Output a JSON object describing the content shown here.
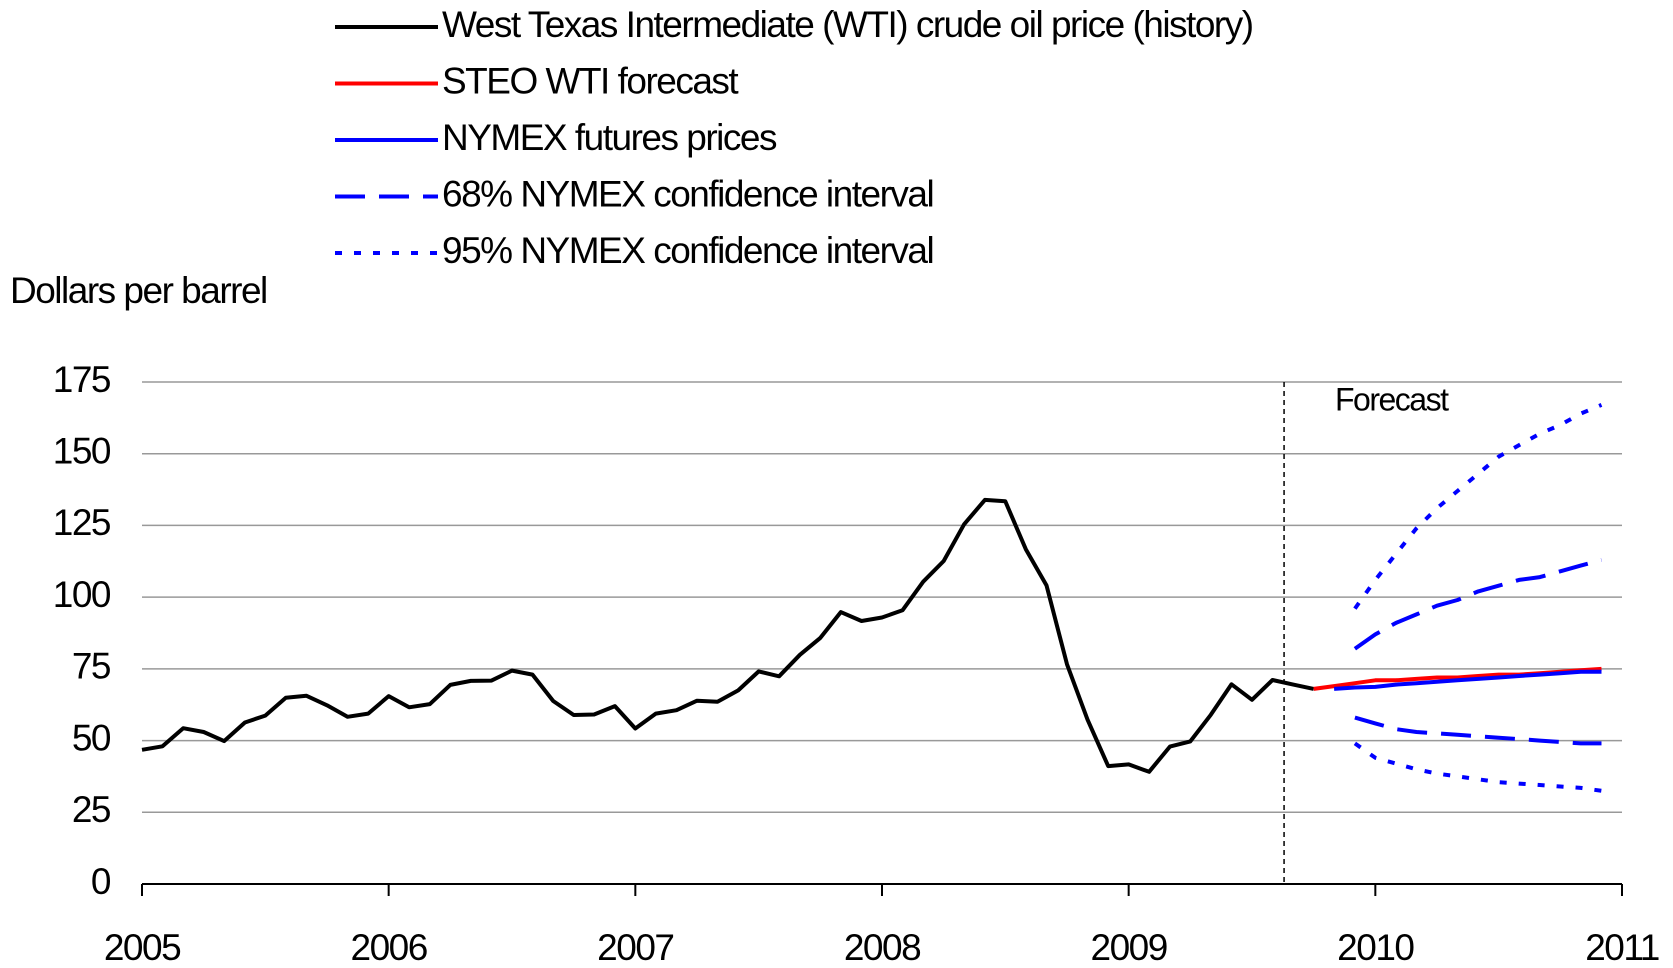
{
  "chart_data": {
    "type": "line",
    "y_label": "Dollars per barrel",
    "annotation": "Forecast",
    "forecast_start": 2009.63,
    "xlim": [
      2005,
      2011
    ],
    "xticks": [
      2005,
      2006,
      2007,
      2008,
      2009,
      2010,
      2011
    ],
    "ylim": [
      0,
      175
    ],
    "yticks": [
      0,
      25,
      50,
      75,
      100,
      125,
      150,
      175
    ],
    "grid": true,
    "x": [
      2005,
      2005.083,
      2005.167,
      2005.25,
      2005.333,
      2005.417,
      2005.5,
      2005.583,
      2005.667,
      2005.75,
      2005.833,
      2005.917,
      2006,
      2006.083,
      2006.167,
      2006.25,
      2006.333,
      2006.417,
      2006.5,
      2006.583,
      2006.667,
      2006.75,
      2006.833,
      2006.917,
      2007,
      2007.083,
      2007.167,
      2007.25,
      2007.333,
      2007.417,
      2007.5,
      2007.583,
      2007.667,
      2007.75,
      2007.833,
      2007.917,
      2008,
      2008.083,
      2008.167,
      2008.25,
      2008.333,
      2008.417,
      2008.5,
      2008.583,
      2008.667,
      2008.75,
      2008.833,
      2008.917,
      2009,
      2009.083,
      2009.167,
      2009.25,
      2009.333,
      2009.417,
      2009.5,
      2009.583,
      2009.667,
      2009.75,
      2009.833,
      2009.917,
      2010,
      2010.083,
      2010.167,
      2010.25,
      2010.333,
      2010.417,
      2010.5,
      2010.583,
      2010.667,
      2010.75,
      2010.833,
      2010.917
    ],
    "series": [
      {
        "name": "West Texas Intermediate (WTI) crude oil price (history)",
        "color": "#000000",
        "dash": "solid",
        "values": [
          46.8,
          48.0,
          54.3,
          53.0,
          49.8,
          56.3,
          58.7,
          64.9,
          65.6,
          62.3,
          58.3,
          59.4,
          65.5,
          61.6,
          62.7,
          69.4,
          70.8,
          70.9,
          74.4,
          73.0,
          63.8,
          58.9,
          59.1,
          62.0,
          54.2,
          59.4,
          60.6,
          63.9,
          63.5,
          67.5,
          74.1,
          72.4,
          79.9,
          85.8,
          94.8,
          91.7,
          92.9,
          95.4,
          105.4,
          112.6,
          125.4,
          133.9,
          133.4,
          116.7,
          104.1,
          76.6,
          57.3,
          41.1,
          41.7,
          39.1,
          47.9,
          49.7,
          59.0,
          69.6,
          64.2,
          71.1,
          69.5,
          68.0,
          null,
          null,
          null,
          null,
          null,
          null,
          null,
          null,
          null,
          null,
          null,
          null,
          null,
          null
        ]
      },
      {
        "name": "STEO WTI forecast",
        "color": "#ff0000",
        "dash": "solid",
        "values": [
          null,
          null,
          null,
          null,
          null,
          null,
          null,
          null,
          null,
          null,
          null,
          null,
          null,
          null,
          null,
          null,
          null,
          null,
          null,
          null,
          null,
          null,
          null,
          null,
          null,
          null,
          null,
          null,
          null,
          null,
          null,
          null,
          null,
          null,
          null,
          null,
          null,
          null,
          null,
          null,
          null,
          null,
          null,
          null,
          null,
          null,
          null,
          null,
          null,
          null,
          null,
          null,
          null,
          null,
          null,
          null,
          null,
          68,
          69,
          70,
          71,
          71,
          71.5,
          72,
          72,
          72.5,
          73,
          73,
          73.5,
          74,
          74.5,
          75
        ]
      },
      {
        "name": "NYMEX futures prices",
        "color": "#0000ff",
        "dash": "solid",
        "values": [
          null,
          null,
          null,
          null,
          null,
          null,
          null,
          null,
          null,
          null,
          null,
          null,
          null,
          null,
          null,
          null,
          null,
          null,
          null,
          null,
          null,
          null,
          null,
          null,
          null,
          null,
          null,
          null,
          null,
          null,
          null,
          null,
          null,
          null,
          null,
          null,
          null,
          null,
          null,
          null,
          null,
          null,
          null,
          null,
          null,
          null,
          null,
          null,
          null,
          null,
          null,
          null,
          null,
          null,
          null,
          null,
          null,
          null,
          68,
          68.5,
          68.7,
          69.5,
          70,
          70.5,
          71,
          71.5,
          72,
          72.5,
          73,
          73.5,
          74,
          74
        ]
      },
      {
        "name": "68% NYMEX confidence interval",
        "color": "#0000ff",
        "dash": "dashed",
        "upper": [
          null,
          null,
          null,
          null,
          null,
          null,
          null,
          null,
          null,
          null,
          null,
          null,
          null,
          null,
          null,
          null,
          null,
          null,
          null,
          null,
          null,
          null,
          null,
          null,
          null,
          null,
          null,
          null,
          null,
          null,
          null,
          null,
          null,
          null,
          null,
          null,
          null,
          null,
          null,
          null,
          null,
          null,
          null,
          null,
          null,
          null,
          null,
          null,
          null,
          null,
          null,
          null,
          null,
          null,
          null,
          null,
          null,
          null,
          null,
          82,
          87,
          91,
          94,
          97,
          99,
          102,
          104,
          106,
          107,
          109,
          111,
          113
        ],
        "lower": [
          null,
          null,
          null,
          null,
          null,
          null,
          null,
          null,
          null,
          null,
          null,
          null,
          null,
          null,
          null,
          null,
          null,
          null,
          null,
          null,
          null,
          null,
          null,
          null,
          null,
          null,
          null,
          null,
          null,
          null,
          null,
          null,
          null,
          null,
          null,
          null,
          null,
          null,
          null,
          null,
          null,
          null,
          null,
          null,
          null,
          null,
          null,
          null,
          null,
          null,
          null,
          null,
          null,
          null,
          null,
          null,
          null,
          null,
          null,
          58,
          56,
          54,
          53,
          52.5,
          52,
          51.5,
          51,
          50.5,
          50,
          49.5,
          49,
          49
        ]
      },
      {
        "name": "95% NYMEX confidence interval",
        "color": "#0000ff",
        "dash": "dotted",
        "upper": [
          null,
          null,
          null,
          null,
          null,
          null,
          null,
          null,
          null,
          null,
          null,
          null,
          null,
          null,
          null,
          null,
          null,
          null,
          null,
          null,
          null,
          null,
          null,
          null,
          null,
          null,
          null,
          null,
          null,
          null,
          null,
          null,
          null,
          null,
          null,
          null,
          null,
          null,
          null,
          null,
          null,
          null,
          null,
          null,
          null,
          null,
          null,
          null,
          null,
          null,
          null,
          null,
          null,
          null,
          null,
          null,
          null,
          null,
          null,
          96,
          106,
          115,
          124,
          131,
          137,
          143,
          149,
          153,
          157,
          160,
          164,
          167
        ],
        "lower": [
          null,
          null,
          null,
          null,
          null,
          null,
          null,
          null,
          null,
          null,
          null,
          null,
          null,
          null,
          null,
          null,
          null,
          null,
          null,
          null,
          null,
          null,
          null,
          null,
          null,
          null,
          null,
          null,
          null,
          null,
          null,
          null,
          null,
          null,
          null,
          null,
          null,
          null,
          null,
          null,
          null,
          null,
          null,
          null,
          null,
          null,
          null,
          null,
          null,
          null,
          null,
          null,
          null,
          null,
          null,
          null,
          null,
          null,
          null,
          49,
          44,
          42,
          40,
          38.5,
          37.5,
          36.5,
          35.5,
          35,
          34.5,
          34,
          33.5,
          32.5
        ]
      }
    ]
  }
}
